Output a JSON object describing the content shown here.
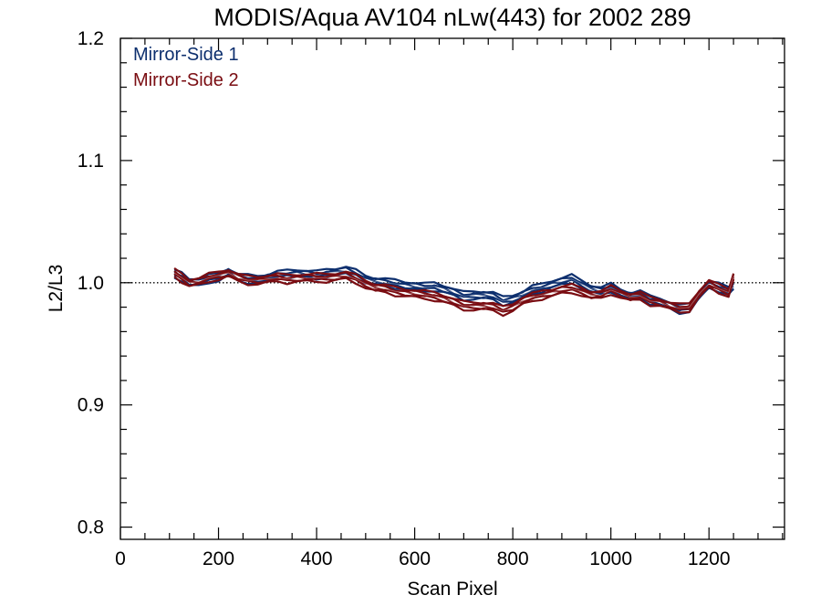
{
  "chart_data": {
    "type": "line",
    "title": "MODIS/Aqua AV104 nLw(443) for 2002 289",
    "xlabel": "Scan Pixel",
    "ylabel": "L2/L3",
    "xlim": [
      0,
      1354
    ],
    "ylim": [
      0.79,
      1.2
    ],
    "xticks": [
      0,
      200,
      400,
      600,
      800,
      1000,
      1200
    ],
    "yticks": [
      0.8,
      0.9,
      1.0,
      1.1,
      1.2
    ],
    "xtick_labels": [
      "0",
      "200",
      "400",
      "600",
      "800",
      "1000",
      "1200"
    ],
    "ytick_labels": [
      "0.8",
      "0.9",
      "1.0",
      "1.1",
      "1.2"
    ],
    "reference_line": 1.0,
    "grid": false,
    "legend_position": "top-left",
    "x": [
      110,
      125,
      140,
      160,
      180,
      200,
      220,
      240,
      260,
      280,
      300,
      320,
      340,
      360,
      380,
      400,
      420,
      440,
      460,
      480,
      500,
      520,
      540,
      560,
      580,
      600,
      620,
      640,
      660,
      680,
      700,
      720,
      740,
      760,
      780,
      800,
      820,
      840,
      860,
      880,
      900,
      920,
      940,
      960,
      980,
      1000,
      1020,
      1040,
      1060,
      1080,
      1100,
      1120,
      1140,
      1160,
      1180,
      1200,
      1220,
      1240,
      1250
    ],
    "series": [
      {
        "name": "Mirror-Side 1",
        "color": "#0d2f6e",
        "values": [
          1.007,
          1.005,
          1.001,
          1.0,
          1.003,
          1.005,
          1.009,
          1.004,
          1.003,
          1.003,
          1.004,
          1.006,
          1.007,
          1.008,
          1.007,
          1.006,
          1.008,
          1.009,
          1.01,
          1.007,
          1.003,
          1.001,
          1.0,
          0.999,
          0.998,
          0.997,
          0.996,
          0.997,
          0.995,
          0.992,
          0.989,
          0.99,
          0.99,
          0.989,
          0.985,
          0.987,
          0.99,
          0.994,
          0.996,
          0.999,
          1.001,
          1.003,
          0.999,
          0.995,
          0.993,
          0.996,
          0.992,
          0.989,
          0.99,
          0.986,
          0.985,
          0.981,
          0.978,
          0.98,
          0.99,
          0.998,
          0.996,
          0.994,
          0.997
        ]
      },
      {
        "name": "Mirror-Side 2",
        "color": "#7a0d12",
        "values": [
          1.008,
          1.004,
          1.0,
          1.001,
          1.004,
          1.006,
          1.008,
          1.004,
          1.002,
          1.002,
          1.003,
          1.004,
          1.003,
          1.004,
          1.004,
          1.004,
          1.004,
          1.005,
          1.006,
          1.003,
          0.999,
          0.996,
          0.995,
          0.993,
          0.992,
          0.991,
          0.99,
          0.989,
          0.987,
          0.984,
          0.981,
          0.981,
          0.981,
          0.98,
          0.977,
          0.98,
          0.985,
          0.988,
          0.99,
          0.992,
          0.994,
          0.995,
          0.993,
          0.99,
          0.99,
          0.994,
          0.991,
          0.988,
          0.989,
          0.985,
          0.984,
          0.981,
          0.979,
          0.98,
          0.991,
          0.999,
          0.995,
          0.992,
          1.005
        ]
      }
    ]
  }
}
